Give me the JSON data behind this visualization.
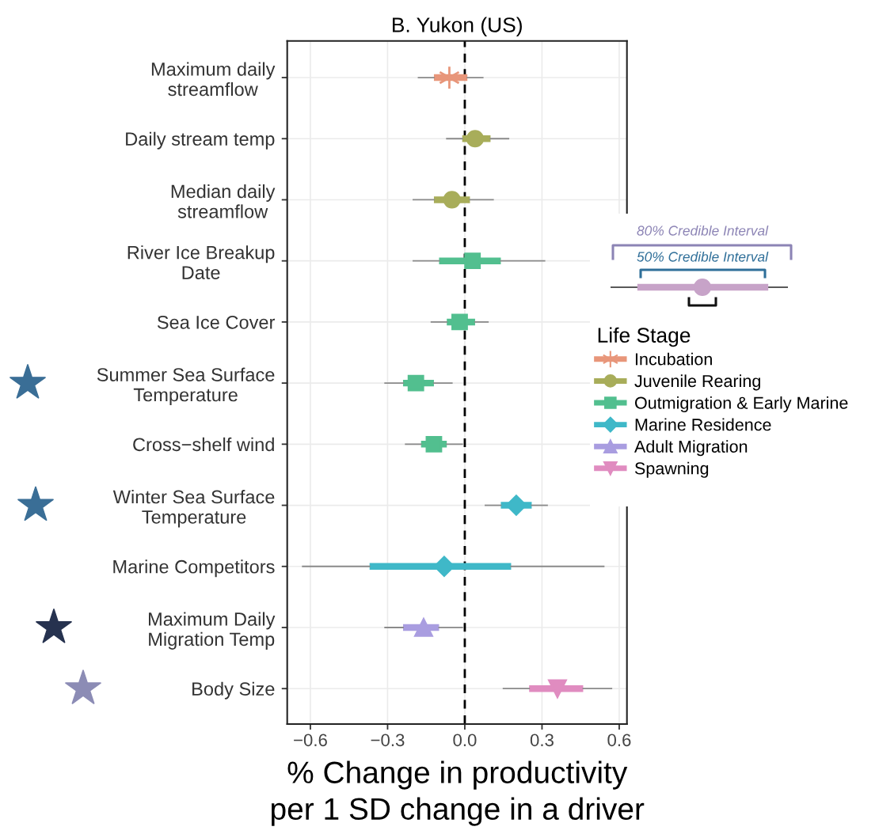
{
  "chart_data": {
    "type": "box",
    "orientation": "horizontal",
    "title": "B. Yukon (US)",
    "xlabel": "% Change in productivity\nper 1 SD change in a driver",
    "categories": [
      "Maximum daily\nstreamflow",
      "Daily stream temp",
      "Median daily\nstreamflow",
      "River Ice Breakup\nDate",
      "Sea Ice Cover",
      "Summer Sea Surface\nTemperature",
      "Cross−shelf wind",
      "Winter Sea Surface\nTemperature",
      "Marine Competitors",
      "Maximum Daily\nMigration Temp",
      "Body Size"
    ],
    "xlim": [
      -0.69,
      0.63
    ],
    "xticks": [
      {
        "value": -0.6,
        "label": "−0.6"
      },
      {
        "value": -0.3,
        "label": "−0.3"
      },
      {
        "value": 0.0,
        "label": "0.0"
      },
      0.3,
      0.6
    ],
    "grid": true,
    "legend": "right",
    "legend_title": "Life Stage",
    "ref_lines": [
      {
        "axis": "x",
        "value": 0,
        "color": "#000000",
        "line_style": "dashed"
      }
    ],
    "annotations": [
      "80% Credible Interval",
      "50% Credible Interval"
    ],
    "series": [
      {
        "name": "Incubation",
        "color": "#e8967a",
        "marker": "star",
        "boxes": [
          {
            "low": -0.18,
            "q1": -0.12,
            "median": -0.06,
            "q3": 0.01,
            "high": 0.07
          },
          null,
          null,
          null,
          null,
          null,
          null,
          null,
          null,
          null,
          null
        ]
      },
      {
        "name": "Juvenile Rearing",
        "color": "#a8ad5a",
        "marker": "circle",
        "boxes": [
          null,
          {
            "low": -0.07,
            "q1": -0.01,
            "median": 0.04,
            "q3": 0.1,
            "high": 0.17
          },
          {
            "low": -0.2,
            "q1": -0.12,
            "median": -0.05,
            "q3": 0.02,
            "high": 0.11
          },
          null,
          null,
          null,
          null,
          null,
          null,
          null,
          null
        ]
      },
      {
        "name": "Outmigration & Early Marine",
        "color": "#52bf8f",
        "marker": "square",
        "boxes": [
          null,
          null,
          null,
          {
            "low": -0.2,
            "q1": -0.1,
            "median": 0.03,
            "q3": 0.14,
            "high": 0.31
          },
          {
            "low": -0.13,
            "q1": -0.07,
            "median": -0.02,
            "q3": 0.04,
            "high": 0.09
          },
          {
            "low": -0.31,
            "q1": -0.24,
            "median": -0.19,
            "q3": -0.12,
            "high": -0.05
          },
          {
            "low": -0.23,
            "q1": -0.17,
            "median": -0.12,
            "q3": -0.07,
            "high": -0.01
          },
          null,
          null,
          null,
          null
        ]
      },
      {
        "name": "Marine Residence",
        "color": "#3fb8c8",
        "marker": "diamond",
        "boxes": [
          null,
          null,
          null,
          null,
          null,
          null,
          null,
          {
            "low": 0.08,
            "q1": 0.14,
            "median": 0.2,
            "q3": 0.26,
            "high": 0.32
          },
          {
            "low": -0.63,
            "q1": -0.37,
            "median": -0.08,
            "q3": 0.18,
            "high": 0.54
          },
          null,
          null
        ]
      },
      {
        "name": "Adult Migration",
        "color": "#a99de0",
        "marker": "triangle",
        "boxes": [
          null,
          null,
          null,
          null,
          null,
          null,
          null,
          null,
          null,
          {
            "low": -0.31,
            "q1": -0.24,
            "median": -0.16,
            "q3": -0.1,
            "high": -0.01
          },
          null
        ]
      },
      {
        "name": "Spawning",
        "color": "#e08cc0",
        "marker": "triangle-down",
        "boxes": [
          null,
          null,
          null,
          null,
          null,
          null,
          null,
          null,
          null,
          null,
          {
            "low": 0.15,
            "q1": 0.25,
            "median": 0.36,
            "q3": 0.46,
            "high": 0.57
          }
        ]
      }
    ]
  }
}
